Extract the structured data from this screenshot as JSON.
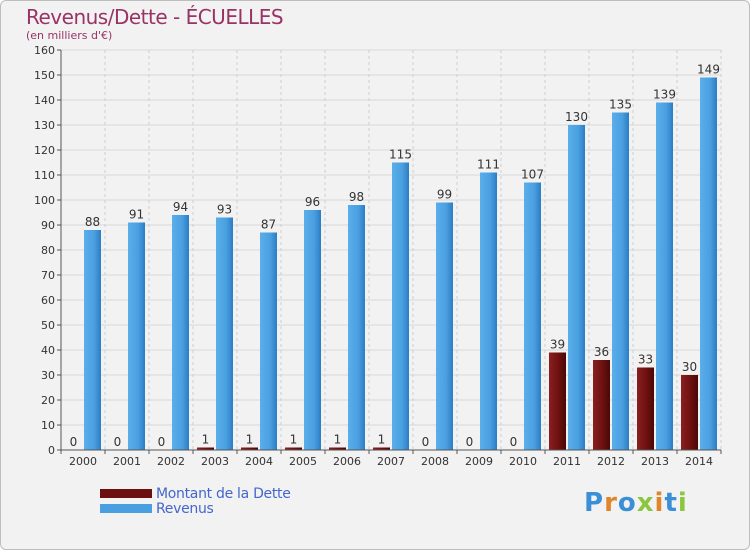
{
  "chart_data": {
    "type": "bar",
    "title": "Revenus/Dette - ÉCUELLES",
    "subtitle": "(en milliers d'€)",
    "categories": [
      "2000",
      "2001",
      "2002",
      "2003",
      "2004",
      "2005",
      "2006",
      "2007",
      "2008",
      "2009",
      "2010",
      "2011",
      "2012",
      "2013",
      "2014"
    ],
    "series": [
      {
        "name": "Montant de la Dette",
        "color": "#6b0f0f",
        "values": [
          0,
          0,
          0,
          1,
          1,
          1,
          1,
          1,
          0,
          0,
          0,
          39,
          36,
          33,
          30
        ]
      },
      {
        "name": "Revenus",
        "color": "#4a9fe0",
        "values": [
          88,
          91,
          94,
          93,
          87,
          96,
          98,
          115,
          99,
          111,
          107,
          130,
          135,
          139,
          149
        ]
      }
    ],
    "y_ticks": [
      0,
      10,
      20,
      30,
      40,
      50,
      60,
      70,
      80,
      90,
      100,
      110,
      120,
      130,
      140,
      150,
      160
    ],
    "ylim": [
      0,
      160
    ],
    "grid": true,
    "legend_position": "bottom-left"
  },
  "logo": {
    "letters": [
      "P",
      "r",
      "o",
      "x",
      "i",
      "t",
      "i"
    ],
    "colors": [
      "#3a8fd6",
      "#e0862a",
      "#3a8fd6",
      "#8cc63f",
      "#e0862a",
      "#3a8fd6",
      "#8cc63f"
    ]
  }
}
